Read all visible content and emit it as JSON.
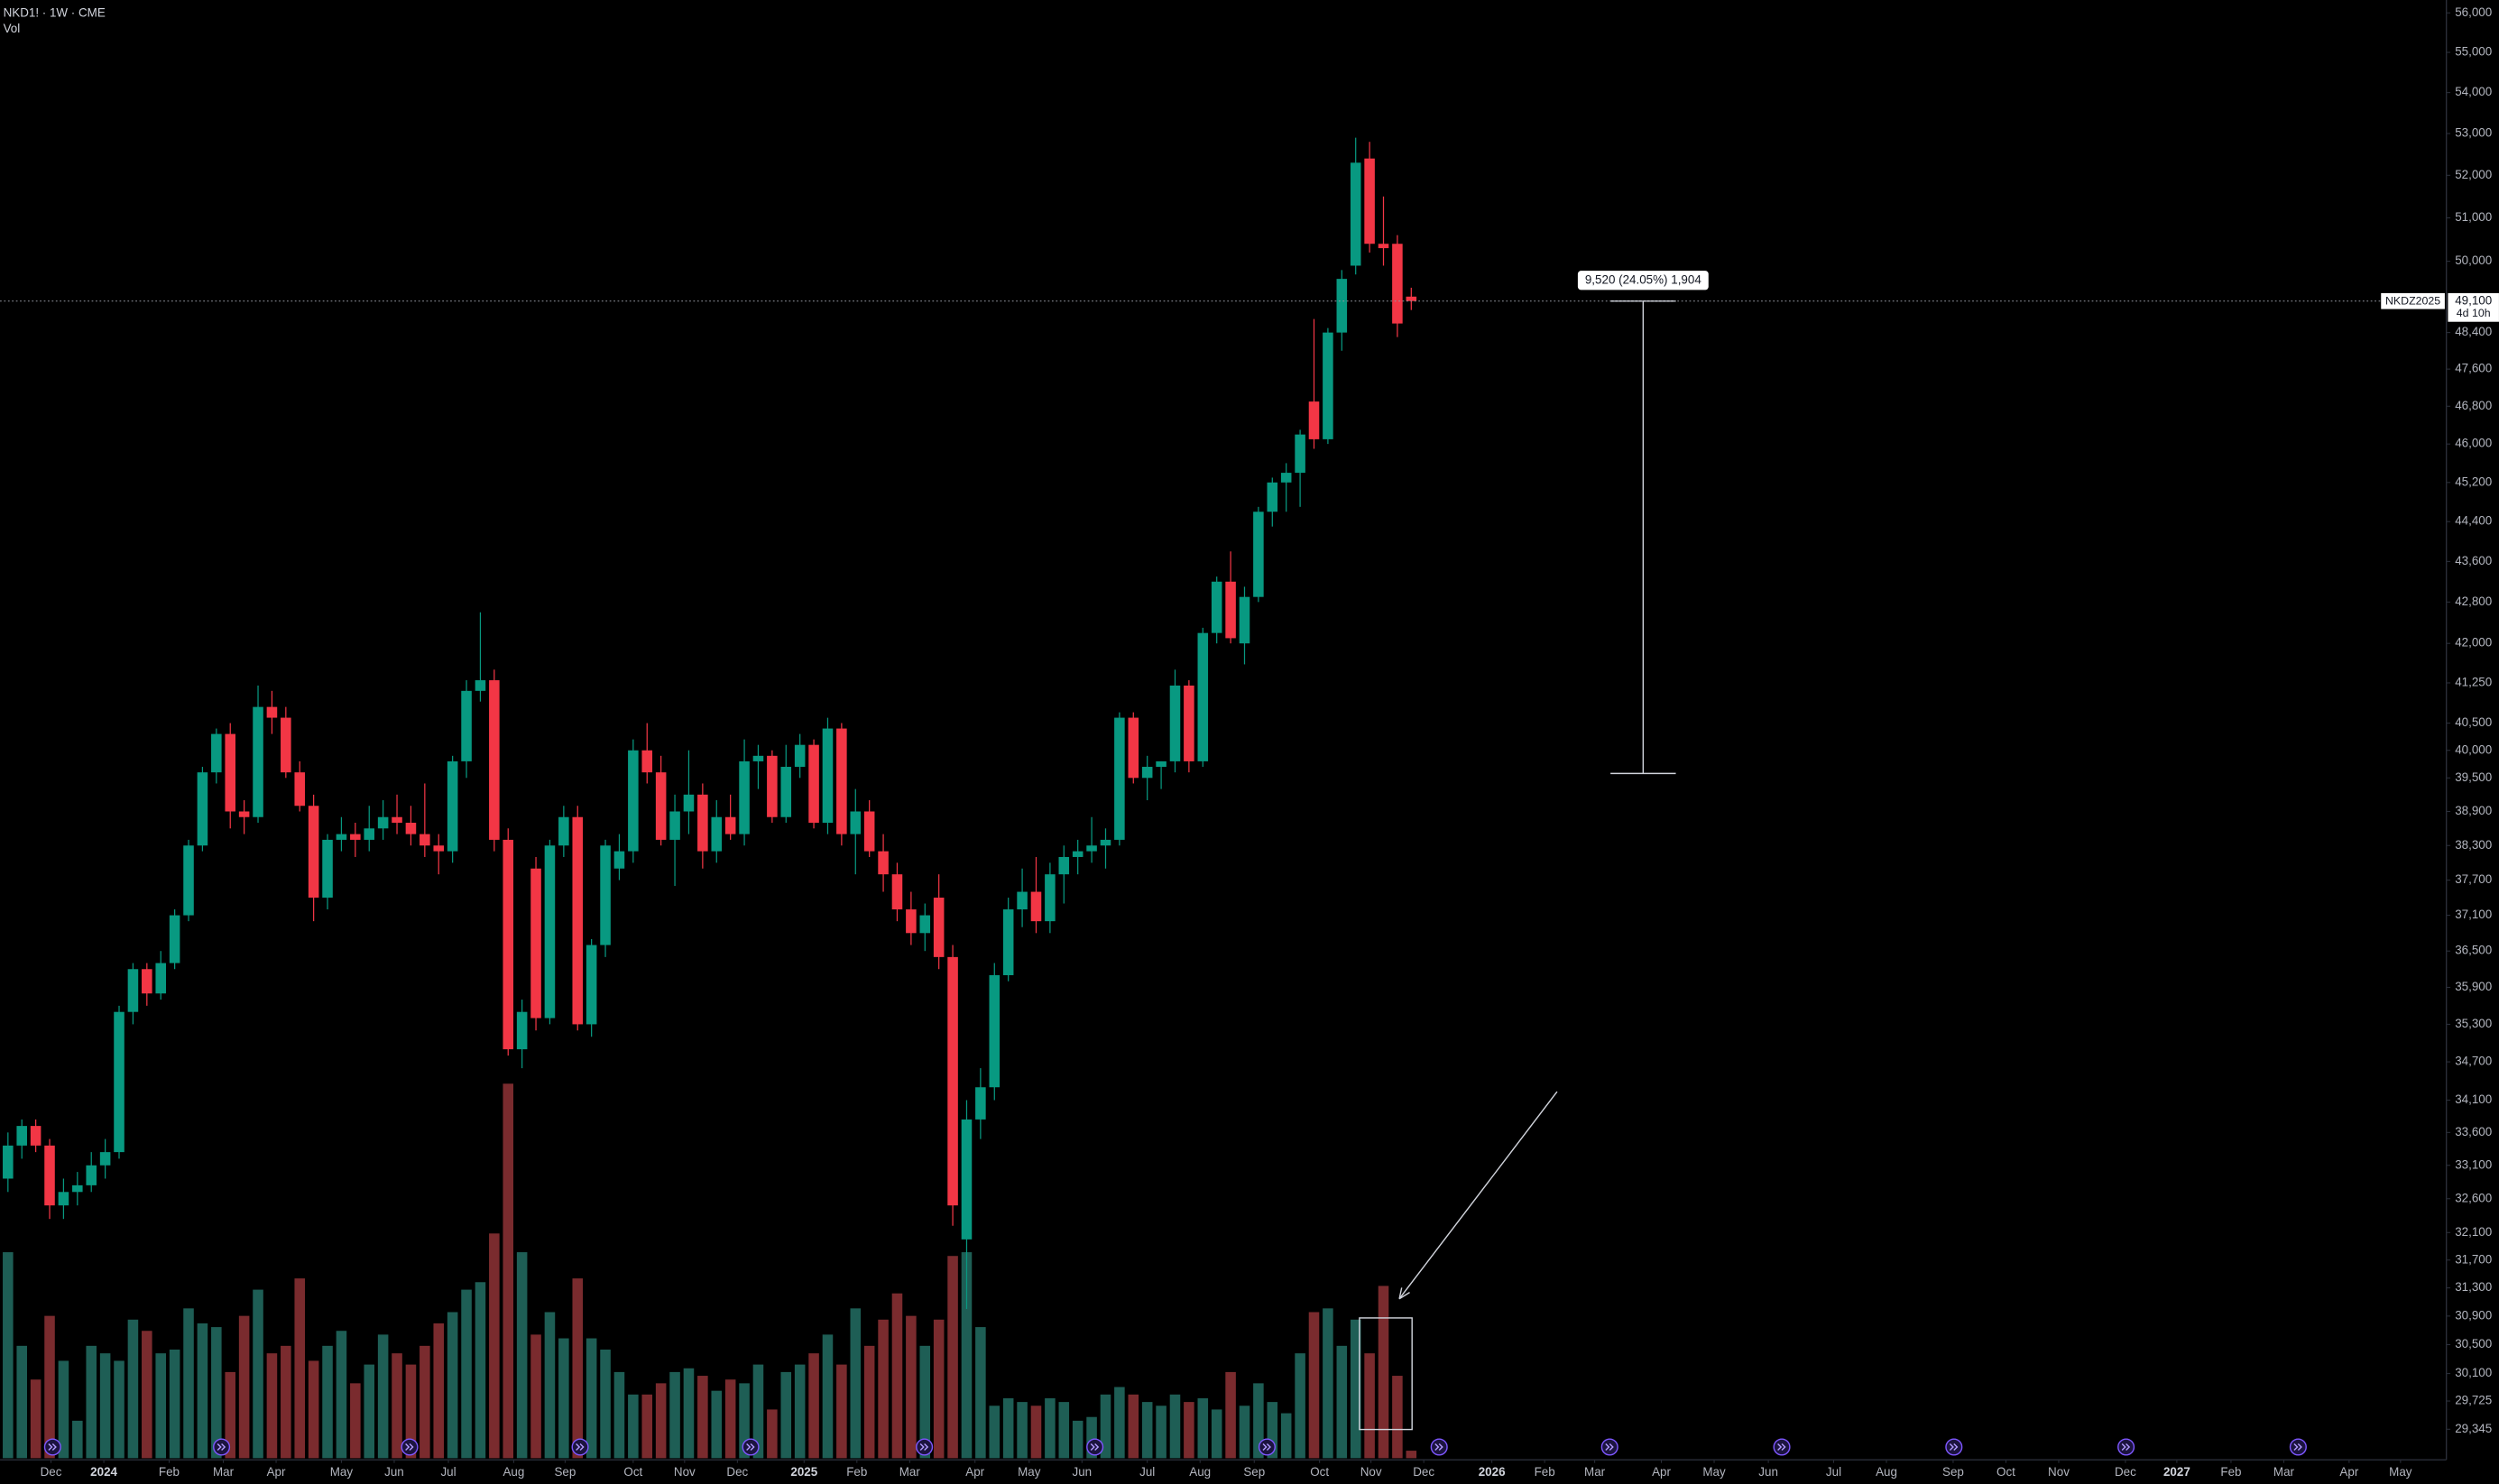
{
  "chart_data": {
    "type": "candlestick",
    "title": "NKD1! · 1W · CME",
    "log": true,
    "grid": false,
    "up_color": "#089981",
    "down_color": "#f23645",
    "xlim": [
      -0.57,
      175.5
    ],
    "xticks": [
      {
        "value": 3.1,
        "label": "Dec"
      },
      {
        "value": 6.9,
        "label": "2024"
      },
      {
        "value": 11.6,
        "label": "Feb"
      },
      {
        "value": 15.5,
        "label": "Mar"
      },
      {
        "value": 19.3,
        "label": "Apr"
      },
      {
        "value": 24.0,
        "label": "May"
      },
      {
        "value": 27.8,
        "label": "Jun"
      },
      {
        "value": 31.7,
        "label": "Jul"
      },
      {
        "value": 36.4,
        "label": "Aug"
      },
      {
        "value": 40.1,
        "label": "Sep"
      },
      {
        "value": 45.0,
        "label": "Oct"
      },
      {
        "value": 48.7,
        "label": "Nov"
      },
      {
        "value": 52.5,
        "label": "Dec"
      },
      {
        "value": 57.3,
        "label": "2025"
      },
      {
        "value": 61.1,
        "label": "Feb"
      },
      {
        "value": 64.9,
        "label": "Mar"
      },
      {
        "value": 69.6,
        "label": "Apr"
      },
      {
        "value": 73.5,
        "label": "May"
      },
      {
        "value": 77.3,
        "label": "Jun"
      },
      {
        "value": 82.0,
        "label": "Jul"
      },
      {
        "value": 85.8,
        "label": "Aug"
      },
      {
        "value": 89.7,
        "label": "Sep"
      },
      {
        "value": 94.4,
        "label": "Oct"
      },
      {
        "value": 98.1,
        "label": "Nov"
      },
      {
        "value": 101.9,
        "label": "Dec"
      },
      {
        "value": 106.8,
        "label": "2026"
      },
      {
        "value": 110.6,
        "label": "Feb"
      },
      {
        "value": 114.2,
        "label": "Mar"
      },
      {
        "value": 119.0,
        "label": "Apr"
      },
      {
        "value": 122.8,
        "label": "May"
      },
      {
        "value": 126.7,
        "label": "Jun"
      },
      {
        "value": 131.4,
        "label": "Jul"
      },
      {
        "value": 135.2,
        "label": "Aug"
      },
      {
        "value": 140.0,
        "label": "Sep"
      },
      {
        "value": 143.8,
        "label": "Oct"
      },
      {
        "value": 147.6,
        "label": "Nov"
      },
      {
        "value": 152.4,
        "label": "Dec"
      },
      {
        "value": 156.1,
        "label": "2027"
      },
      {
        "value": 160.0,
        "label": "Feb"
      },
      {
        "value": 163.8,
        "label": "Mar"
      },
      {
        "value": 168.5,
        "label": "Apr"
      },
      {
        "value": 172.2,
        "label": "May"
      }
    ],
    "ylim": [
      28960,
      56330
    ],
    "yticks": [
      {
        "value": 56000,
        "label": "56,000"
      },
      {
        "value": 55000,
        "label": "55,000"
      },
      {
        "value": 54000,
        "label": "54,000"
      },
      {
        "value": 53000,
        "label": "53,000"
      },
      {
        "value": 52000,
        "label": "52,000"
      },
      {
        "value": 51000,
        "label": "51,000"
      },
      {
        "value": 50000,
        "label": "50,000"
      },
      {
        "value": 48400,
        "label": "48,400"
      },
      {
        "value": 47600,
        "label": "47,600"
      },
      {
        "value": 46800,
        "label": "46,800"
      },
      {
        "value": 46000,
        "label": "46,000"
      },
      {
        "value": 45200,
        "label": "45,200"
      },
      {
        "value": 44400,
        "label": "44,400"
      },
      {
        "value": 43600,
        "label": "43,600"
      },
      {
        "value": 42800,
        "label": "42,800"
      },
      {
        "value": 42000,
        "label": "42,000"
      },
      {
        "value": 41250,
        "label": "41,250"
      },
      {
        "value": 40500,
        "label": "40,500"
      },
      {
        "value": 40000,
        "label": "40,000"
      },
      {
        "value": 39500,
        "label": "39,500"
      },
      {
        "value": 38900,
        "label": "38,900"
      },
      {
        "value": 38300,
        "label": "38,300"
      },
      {
        "value": 37700,
        "label": "37,700"
      },
      {
        "value": 37100,
        "label": "37,100"
      },
      {
        "value": 36500,
        "label": "36,500"
      },
      {
        "value": 35900,
        "label": "35,900"
      },
      {
        "value": 35300,
        "label": "35,300"
      },
      {
        "value": 34700,
        "label": "34,700"
      },
      {
        "value": 34100,
        "label": "34,100"
      },
      {
        "value": 33600,
        "label": "33,600"
      },
      {
        "value": 33100,
        "label": "33,100"
      },
      {
        "value": 32600,
        "label": "32,600"
      },
      {
        "value": 32100,
        "label": "32,100"
      },
      {
        "value": 31700,
        "label": "31,700"
      },
      {
        "value": 31300,
        "label": "31,300"
      },
      {
        "value": 30900,
        "label": "30,900"
      },
      {
        "value": 30500,
        "label": "30,500"
      },
      {
        "value": 30100,
        "label": "30,100"
      },
      {
        "value": 29725,
        "label": "29,725"
      },
      {
        "value": 29345,
        "label": "29,345"
      }
    ],
    "open": [
      32900,
      33400,
      33700,
      33400,
      32500,
      32700,
      32800,
      33100,
      33300,
      35500,
      36200,
      35800,
      36300,
      37100,
      38300,
      39600,
      40300,
      38900,
      38800,
      40800,
      40600,
      39600,
      39000,
      37400,
      38400,
      38500,
      38400,
      38600,
      38800,
      38700,
      38500,
      38300,
      38200,
      39800,
      41100,
      41300,
      38400,
      34900,
      37900,
      35400,
      38300,
      38800,
      35300,
      36600,
      37900,
      38200,
      40000,
      39600,
      38400,
      38900,
      39200,
      38200,
      38800,
      38500,
      39800,
      39900,
      38800,
      39700,
      40100,
      38700,
      40400,
      38500,
      38900,
      38200,
      37800,
      37200,
      36800,
      37400,
      36400,
      32000,
      33800,
      34300,
      36100,
      37200,
      37500,
      37000,
      37800,
      38100,
      38200,
      38300,
      38400,
      40600,
      39500,
      39700,
      39800,
      41200,
      39800,
      42200,
      43200,
      42000,
      42900,
      44600,
      45200,
      45400,
      46900,
      46100,
      48400,
      49900,
      52400,
      50400,
      50400,
      49200
    ],
    "high": [
      33600,
      33800,
      33800,
      33500,
      32900,
      33000,
      33300,
      33500,
      35600,
      36300,
      36300,
      36500,
      37200,
      38400,
      39700,
      40400,
      40500,
      39100,
      41200,
      41100,
      40800,
      39800,
      39200,
      38500,
      38800,
      38700,
      39000,
      39100,
      39200,
      39000,
      39400,
      38500,
      39900,
      41300,
      42600,
      41500,
      38600,
      35700,
      38100,
      38400,
      39000,
      39000,
      36700,
      38400,
      38500,
      40200,
      40500,
      39900,
      39200,
      40000,
      39400,
      39100,
      39200,
      40200,
      40100,
      40000,
      40100,
      40300,
      40200,
      40600,
      40500,
      39300,
      39100,
      38500,
      38000,
      37500,
      37300,
      37800,
      36600,
      34100,
      34600,
      36300,
      37400,
      37900,
      38100,
      38000,
      38300,
      38400,
      38800,
      38600,
      40700,
      40700,
      39900,
      39800,
      41500,
      41300,
      42300,
      43300,
      43800,
      43100,
      44700,
      45300,
      45600,
      46300,
      48700,
      48500,
      49800,
      52900,
      52800,
      51500,
      50600,
      49400
    ],
    "low": [
      32700,
      33200,
      33300,
      32300,
      32300,
      32500,
      32700,
      32900,
      33200,
      35300,
      35600,
      35700,
      36200,
      37000,
      38200,
      39400,
      38600,
      38500,
      38700,
      40300,
      39500,
      38900,
      37000,
      37200,
      38200,
      38100,
      38200,
      38400,
      38500,
      38300,
      38100,
      37800,
      38000,
      39500,
      40900,
      38200,
      34800,
      34600,
      35200,
      35300,
      38100,
      35200,
      35100,
      36400,
      37700,
      38000,
      39400,
      38300,
      37600,
      38500,
      37900,
      38000,
      38400,
      38300,
      39300,
      38700,
      38700,
      39500,
      38600,
      38500,
      38300,
      37800,
      38100,
      37500,
      37000,
      36600,
      36500,
      36200,
      32200,
      31000,
      33500,
      34100,
      36000,
      36900,
      36800,
      36800,
      37300,
      37800,
      38000,
      37900,
      38300,
      39400,
      39100,
      39300,
      39600,
      39600,
      39700,
      42000,
      42000,
      41600,
      42800,
      44300,
      44600,
      44700,
      45900,
      46000,
      48000,
      49700,
      50200,
      49900,
      48300,
      48900
    ],
    "close": [
      33400,
      33700,
      33400,
      32500,
      32700,
      32800,
      33100,
      33300,
      35500,
      36200,
      35800,
      36300,
      37100,
      38300,
      39600,
      40300,
      38900,
      38800,
      40800,
      40600,
      39600,
      39000,
      37400,
      38400,
      38500,
      38400,
      38600,
      38800,
      38700,
      38500,
      38300,
      38200,
      39800,
      41100,
      41300,
      38400,
      34900,
      35500,
      35400,
      38300,
      38800,
      35300,
      36600,
      38300,
      38200,
      40000,
      39600,
      38400,
      38900,
      39200,
      38200,
      38800,
      38500,
      39800,
      39900,
      38800,
      39700,
      40100,
      38700,
      40400,
      38500,
      38900,
      38200,
      37800,
      37200,
      36800,
      37100,
      36400,
      32500,
      33800,
      34300,
      36100,
      37200,
      37500,
      37000,
      37800,
      38100,
      38200,
      38300,
      38400,
      40600,
      39500,
      39700,
      39800,
      41200,
      39800,
      42200,
      43200,
      42100,
      42900,
      44600,
      45200,
      45400,
      46200,
      46100,
      48400,
      49600,
      52300,
      50400,
      50300,
      48600,
      49100
    ],
    "volume": {
      "name": "Vol",
      "ylim": [
        0,
        100
      ],
      "up_color": "#1e5e55",
      "down_color": "#7a2b2e",
      "values": [
        55,
        30,
        21,
        38,
        26,
        10,
        30,
        28,
        26,
        37,
        34,
        28,
        29,
        40,
        36,
        35,
        23,
        38,
        45,
        28,
        30,
        48,
        26,
        30,
        34,
        20,
        25,
        33,
        28,
        25,
        30,
        36,
        39,
        45,
        47,
        60,
        100,
        55,
        33,
        39,
        32,
        48,
        32,
        29,
        23,
        17,
        17,
        20,
        23,
        24,
        22,
        18,
        21,
        20,
        25,
        13,
        23,
        25,
        28,
        33,
        25,
        40,
        30,
        37,
        44,
        38,
        30,
        37,
        54,
        55,
        35,
        14,
        16,
        15,
        14,
        16,
        15,
        10,
        11,
        17,
        19,
        17,
        15,
        14,
        17,
        15,
        16,
        13,
        23,
        14,
        20,
        15,
        12,
        28,
        39,
        40,
        30,
        37,
        28,
        46,
        22,
        2
      ]
    },
    "last_price": {
      "symbol": "NKDZ2025",
      "value": 49100,
      "label": "49,100",
      "countdown": "4d 10h"
    },
    "measure": {
      "label": "9,520 (24.05%) 1,904",
      "from": 39580,
      "to": 49100
    }
  }
}
